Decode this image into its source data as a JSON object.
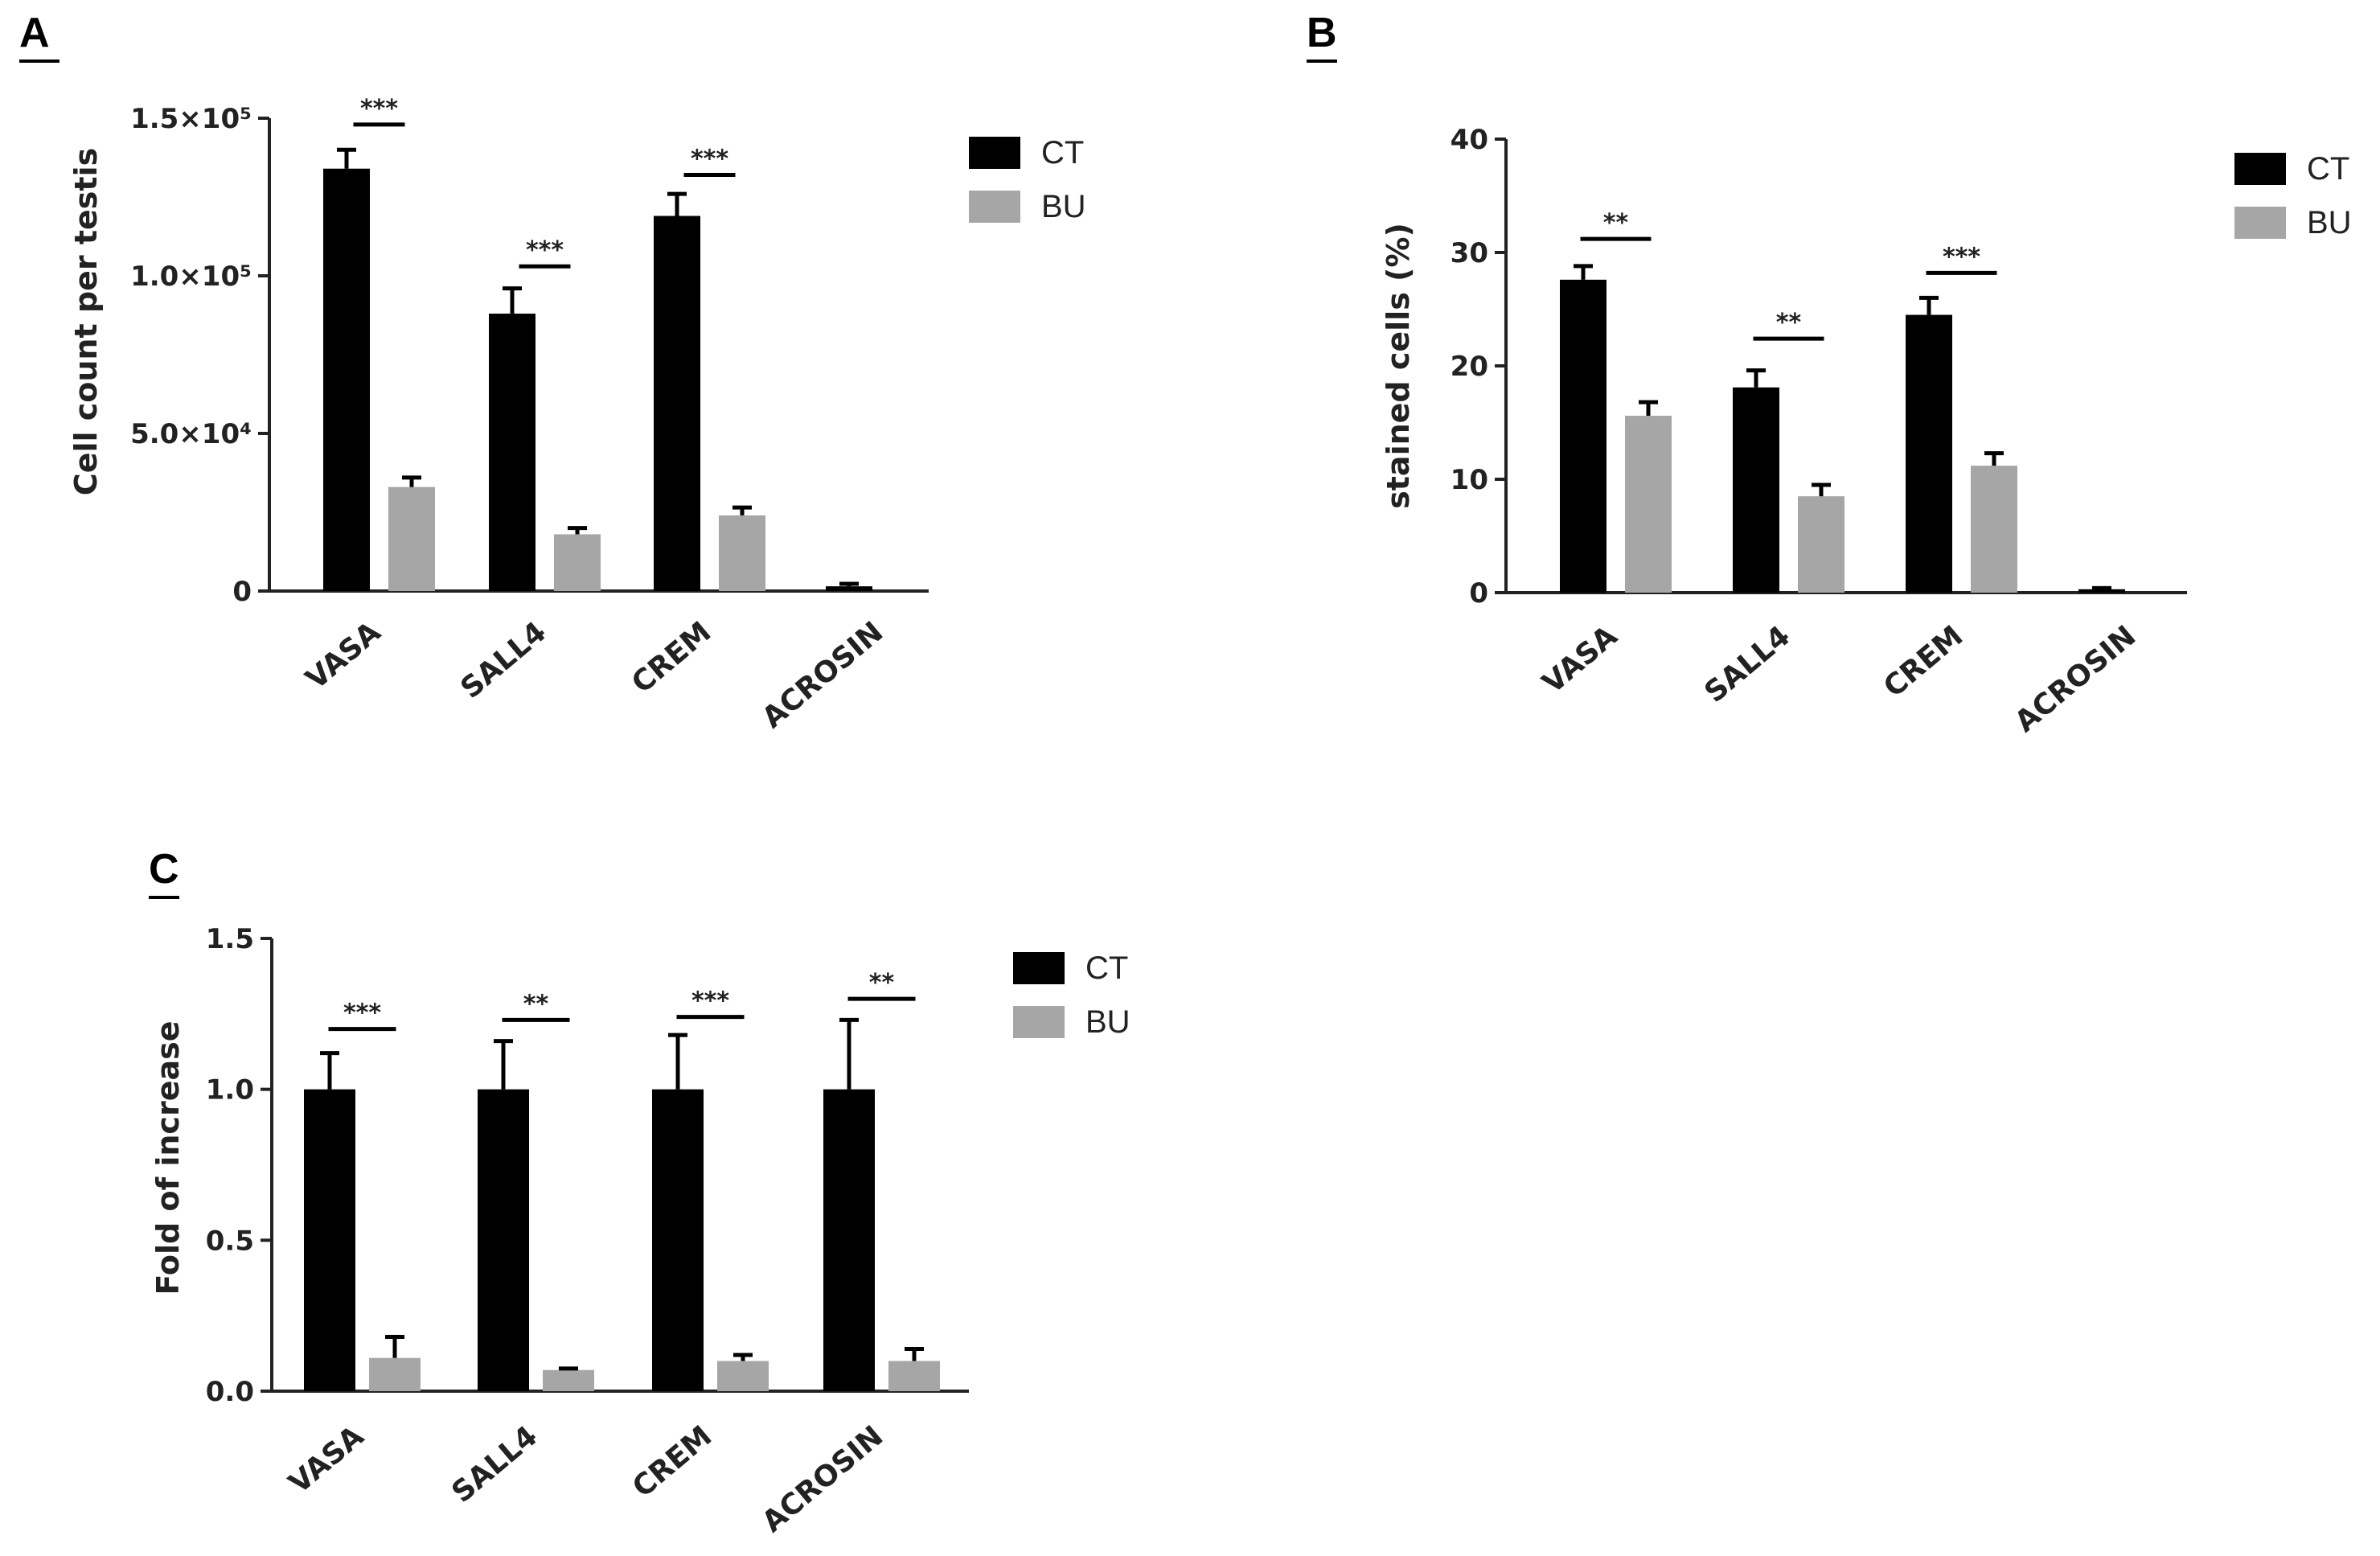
{
  "chart_data": [
    {
      "panel": "A",
      "type": "bar",
      "ylabel": "Cell count per testis",
      "categories": [
        "VASA",
        "SALL4",
        "CREM",
        "ACROSIN"
      ],
      "ylim": [
        0,
        150000
      ],
      "yticks": [
        0,
        50000,
        100000,
        150000
      ],
      "ytick_labels": [
        "0",
        "5.0×10⁴",
        "1.0×10⁵",
        "1.5×10⁵"
      ],
      "series": [
        {
          "name": "CT",
          "color": "#000000",
          "values": [
            134000,
            88000,
            119000,
            1500
          ],
          "errors": [
            6000,
            8000,
            7000,
            800
          ]
        },
        {
          "name": "BU",
          "color": "#a6a6a6",
          "values": [
            33000,
            18000,
            24000,
            0
          ],
          "errors": [
            3000,
            2000,
            2500,
            0
          ]
        }
      ],
      "significance": [
        "***",
        "***",
        "***",
        ""
      ],
      "sig_y": [
        148000,
        103000,
        132000,
        0
      ],
      "legend": "top-right"
    },
    {
      "panel": "B",
      "type": "bar",
      "ylabel": "stained cells (%)",
      "categories": [
        "VASA",
        "SALL4",
        "CREM",
        "ACROSIN"
      ],
      "ylim": [
        0,
        40
      ],
      "yticks": [
        0,
        10,
        20,
        30,
        40
      ],
      "ytick_labels": [
        "0",
        "10",
        "20",
        "30",
        "40"
      ],
      "series": [
        {
          "name": "CT",
          "color": "#000000",
          "values": [
            27.6,
            18.1,
            24.5,
            0.3
          ],
          "errors": [
            1.2,
            1.5,
            1.5,
            0.1
          ]
        },
        {
          "name": "BU",
          "color": "#a6a6a6",
          "values": [
            15.6,
            8.5,
            11.2,
            0
          ],
          "errors": [
            1.2,
            1.0,
            1.1,
            0
          ]
        }
      ],
      "significance": [
        "**",
        "**",
        "***",
        ""
      ],
      "sig_y": [
        31.2,
        22.4,
        28.2,
        0
      ],
      "legend": "top-right"
    },
    {
      "panel": "C",
      "type": "bar",
      "ylabel": "Fold of increase",
      "categories": [
        "VASA",
        "SALL4",
        "CREM",
        "ACROSIN"
      ],
      "ylim": [
        0,
        1.5
      ],
      "yticks": [
        0,
        0.5,
        1.0,
        1.5
      ],
      "ytick_labels": [
        "0.0",
        "0.5",
        "1.0",
        "1.5"
      ],
      "series": [
        {
          "name": "CT",
          "color": "#000000",
          "values": [
            1.0,
            1.0,
            1.0,
            1.0
          ],
          "errors": [
            0.12,
            0.16,
            0.18,
            0.23
          ]
        },
        {
          "name": "BU",
          "color": "#a6a6a6",
          "values": [
            0.11,
            0.07,
            0.1,
            0.1
          ],
          "errors": [
            0.07,
            0.005,
            0.02,
            0.04
          ]
        }
      ],
      "significance": [
        "***",
        "**",
        "***",
        "**"
      ],
      "sig_y": [
        1.2,
        1.23,
        1.24,
        1.3
      ],
      "legend": "top-right"
    }
  ]
}
